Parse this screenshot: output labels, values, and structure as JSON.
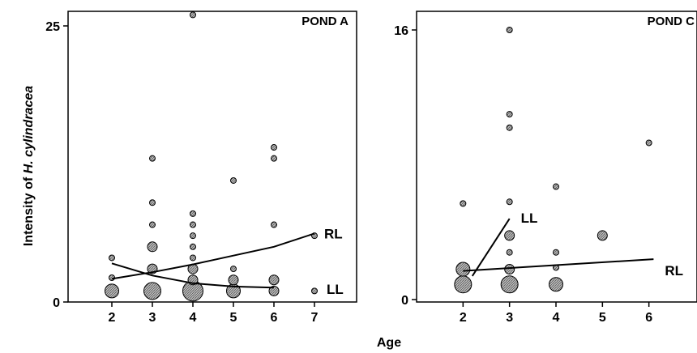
{
  "chart_data": [
    {
      "type": "scatter",
      "title": "POND A",
      "xlim": [
        1,
        8
      ],
      "ylim": [
        0,
        26
      ],
      "x_ticks": [
        "2",
        "3",
        "4",
        "5",
        "6",
        "7"
      ],
      "y_ticks": [
        "0",
        "25"
      ],
      "points": [
        {
          "x": 2,
          "y": 4,
          "size": 1
        },
        {
          "x": 2,
          "y": 2.2,
          "size": 1
        },
        {
          "x": 2,
          "y": 1,
          "size": 3
        },
        {
          "x": 3,
          "y": 13,
          "size": 1
        },
        {
          "x": 3,
          "y": 9,
          "size": 1
        },
        {
          "x": 3,
          "y": 7,
          "size": 1
        },
        {
          "x": 3,
          "y": 5,
          "size": 2
        },
        {
          "x": 3,
          "y": 3,
          "size": 2
        },
        {
          "x": 3,
          "y": 1,
          "size": 4
        },
        {
          "x": 4,
          "y": 26,
          "size": 1
        },
        {
          "x": 4,
          "y": 8,
          "size": 1
        },
        {
          "x": 4,
          "y": 7,
          "size": 1
        },
        {
          "x": 4,
          "y": 6,
          "size": 1
        },
        {
          "x": 4,
          "y": 5,
          "size": 1
        },
        {
          "x": 4,
          "y": 4,
          "size": 1
        },
        {
          "x": 4,
          "y": 3,
          "size": 2
        },
        {
          "x": 4,
          "y": 2,
          "size": 2
        },
        {
          "x": 4,
          "y": 1,
          "size": 5
        },
        {
          "x": 5,
          "y": 11,
          "size": 1
        },
        {
          "x": 5,
          "y": 3,
          "size": 1
        },
        {
          "x": 5,
          "y": 2,
          "size": 2
        },
        {
          "x": 5,
          "y": 1,
          "size": 3
        },
        {
          "x": 6,
          "y": 14,
          "size": 1
        },
        {
          "x": 6,
          "y": 13,
          "size": 1
        },
        {
          "x": 6,
          "y": 7,
          "size": 1
        },
        {
          "x": 6,
          "y": 2,
          "size": 2
        },
        {
          "x": 6,
          "y": 1,
          "size": 2
        },
        {
          "x": 7,
          "y": 6,
          "size": 1
        },
        {
          "x": 7,
          "y": 1,
          "size": 1
        }
      ],
      "lines": [
        {
          "name": "RL",
          "x": [
            2,
            3,
            4,
            5,
            6,
            7
          ],
          "y": [
            2.1,
            2.7,
            3.4,
            4.2,
            5.0,
            6.2
          ]
        },
        {
          "name": "LL",
          "x": [
            2,
            3,
            4,
            5,
            6
          ],
          "y": [
            3.5,
            2.4,
            1.7,
            1.4,
            1.3
          ]
        }
      ]
    },
    {
      "type": "scatter",
      "title": "POND C",
      "xlim": [
        1,
        7
      ],
      "ylim": [
        0,
        16
      ],
      "x_ticks": [
        "2",
        "3",
        "4",
        "5",
        "6"
      ],
      "y_ticks": [
        "0",
        "16"
      ],
      "points": [
        {
          "x": 2,
          "y": 5.7,
          "size": 1
        },
        {
          "x": 2,
          "y": 1.8,
          "size": 3
        },
        {
          "x": 2,
          "y": 0.9,
          "size": 4
        },
        {
          "x": 3,
          "y": 16,
          "size": 1
        },
        {
          "x": 3,
          "y": 11,
          "size": 1
        },
        {
          "x": 3,
          "y": 10.2,
          "size": 1
        },
        {
          "x": 3,
          "y": 5.8,
          "size": 1
        },
        {
          "x": 3,
          "y": 3.8,
          "size": 2
        },
        {
          "x": 3,
          "y": 2.8,
          "size": 1
        },
        {
          "x": 3,
          "y": 1.8,
          "size": 2
        },
        {
          "x": 3,
          "y": 0.9,
          "size": 4
        },
        {
          "x": 4,
          "y": 6.7,
          "size": 1
        },
        {
          "x": 4,
          "y": 2.8,
          "size": 1
        },
        {
          "x": 4,
          "y": 1.9,
          "size": 1
        },
        {
          "x": 4,
          "y": 0.9,
          "size": 3
        },
        {
          "x": 5,
          "y": 3.8,
          "size": 2
        },
        {
          "x": 6,
          "y": 9.3,
          "size": 1
        }
      ],
      "lines": [
        {
          "name": "RL",
          "x": [
            2,
            6.1
          ],
          "y": [
            1.7,
            2.4
          ]
        },
        {
          "name": "LL",
          "x": [
            2.2,
            3
          ],
          "y": [
            1.4,
            4.8
          ]
        }
      ]
    }
  ],
  "ylabel_prefix": "Intensity of ",
  "ylabel_species": "H. cylindracea",
  "xlabel": "Age"
}
